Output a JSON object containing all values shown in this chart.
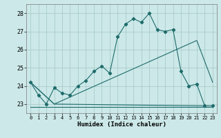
{
  "title": "",
  "xlabel": "Humidex (Indice chaleur)",
  "bg_color": "#cce8e8",
  "grid_color": "#aacccc",
  "line_color": "#1e6b6b",
  "xlim": [
    -0.5,
    23.5
  ],
  "ylim": [
    22.5,
    28.5
  ],
  "yticks": [
    23,
    24,
    25,
    26,
    27,
    28
  ],
  "xticks": [
    0,
    1,
    2,
    3,
    4,
    5,
    6,
    7,
    8,
    9,
    10,
    11,
    12,
    13,
    14,
    15,
    16,
    17,
    18,
    19,
    20,
    21,
    22,
    23
  ],
  "xtick_labels": [
    "0",
    "1",
    "2",
    "3",
    "4",
    "5",
    "6",
    "7",
    "8",
    "9",
    "10",
    "11",
    "12",
    "13",
    "14",
    "15",
    "16",
    "17",
    "18",
    "19",
    "20",
    "21",
    "22",
    "23"
  ],
  "line1_x": [
    0,
    1,
    2,
    3,
    4,
    5,
    6,
    7,
    8,
    9,
    10,
    11,
    12,
    13,
    14,
    15,
    16,
    17,
    18,
    19,
    20,
    21,
    22,
    23
  ],
  "line1_y": [
    24.2,
    23.5,
    23.0,
    23.9,
    23.6,
    23.5,
    24.0,
    24.3,
    24.8,
    25.1,
    24.7,
    26.7,
    27.4,
    27.7,
    27.5,
    28.0,
    27.1,
    27.0,
    27.1,
    24.8,
    24.0,
    24.1,
    22.9,
    22.9
  ],
  "line2_x": [
    0,
    3,
    22,
    23
  ],
  "line2_y": [
    24.2,
    23.0,
    22.9,
    22.9
  ],
  "line3_x": [
    0,
    10,
    16,
    21,
    23
  ],
  "line3_y": [
    22.85,
    22.85,
    22.85,
    22.85,
    22.85
  ],
  "line4_x": [
    0,
    3,
    21,
    23
  ],
  "line4_y": [
    24.2,
    23.0,
    26.5,
    24.2
  ]
}
